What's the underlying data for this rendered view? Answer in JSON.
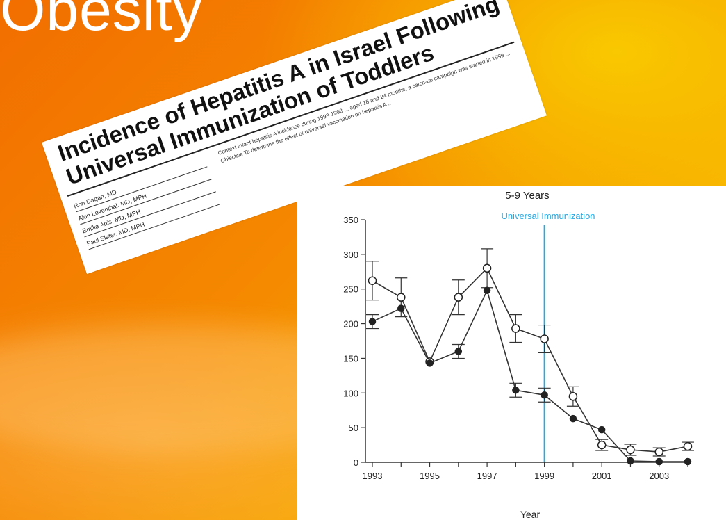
{
  "slide": {
    "title": "Obesity"
  },
  "article": {
    "title": "Incidence of Hepatitis A in Israel Following Universal Immunization of Toddlers",
    "authors": [
      "Ron Dagan, MD",
      "Alon Leventhal, MD, MPH",
      "Emilia Anis, MD, MPH",
      "Paul Slater, MD, MPH"
    ],
    "abstract": "Context Infant hepatitis A incidence during 1993-1998 ... aged 18 and 24 months; a catch-up campaign was started in 1999 ... Objective To determine the effect of universal vaccination on hepatitis A ..."
  },
  "chart_data": {
    "type": "line",
    "title": "5-9 Years",
    "annotation": {
      "label": "Universal Immunization",
      "x": 1999,
      "color": "#2aa7df"
    },
    "xlabel": "Year",
    "ylabel": "",
    "xlim": [
      1993,
      2004
    ],
    "ylim": [
      0,
      350
    ],
    "x_ticks": [
      1993,
      1995,
      1997,
      1999,
      2001,
      2003
    ],
    "y_ticks": [
      0,
      50,
      100,
      150,
      200,
      250,
      300,
      350
    ],
    "grid": false,
    "x": [
      1993,
      1994,
      1995,
      1996,
      1997,
      1998,
      1999,
      2000,
      2001,
      2002,
      2003,
      2004
    ],
    "series": [
      {
        "marker": "open-circle",
        "values": [
          262,
          238,
          145,
          238,
          280,
          193,
          178,
          95,
          25,
          18,
          15,
          23
        ],
        "error": [
          28,
          28,
          0,
          25,
          28,
          20,
          20,
          14,
          8,
          8,
          6,
          6
        ]
      },
      {
        "marker": "filled-circle",
        "values": [
          203,
          222,
          143,
          160,
          248,
          104,
          97,
          63,
          47,
          2,
          1,
          1
        ],
        "error": [
          10,
          0,
          0,
          10,
          0,
          10,
          10,
          0,
          0,
          0,
          0,
          0
        ]
      }
    ]
  }
}
